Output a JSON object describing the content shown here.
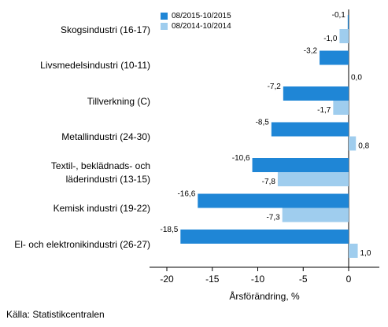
{
  "chart_data": {
    "type": "bar",
    "orientation": "horizontal",
    "categories": [
      "Skogsindustri (16-17)",
      "Livsmedelsindustri (10-11)",
      "Tillverkning (C)",
      "Metallindustri (24-30)",
      "Textil-, beklädnads- och\nläderindustri (13-15)",
      "Kemisk industri (19-22)",
      "El- och elektronikindustri (26-27)"
    ],
    "series": [
      {
        "name": "08/2015-10/2015",
        "color": "#1f86d6",
        "values": [
          -0.1,
          -3.2,
          -7.2,
          -8.5,
          -10.6,
          -16.6,
          -18.5
        ],
        "labels": [
          "-0,1",
          "-3,2",
          "-7,2",
          "-8,5",
          "-10,6",
          "-16,6",
          "-18,5"
        ]
      },
      {
        "name": "08/2014-10/2014",
        "color": "#9fcdee",
        "values": [
          -1.0,
          0.0,
          -1.7,
          0.8,
          -7.8,
          -7.3,
          1.0
        ],
        "labels": [
          "-1,0",
          "0,0",
          "-1,7",
          "0,8",
          "-7,8",
          "-7,3",
          "1,0"
        ]
      }
    ],
    "xlabel": "Årsförändring, %",
    "xlim": [
      -20,
      3
    ],
    "xticks": [
      -20,
      -15,
      -10,
      -5,
      0
    ],
    "xtick_labels": [
      "-20",
      "-15",
      "-10",
      "-5",
      "0"
    ],
    "grid": false,
    "legend_position": "top"
  },
  "source": "Källa: Statistikcentralen"
}
